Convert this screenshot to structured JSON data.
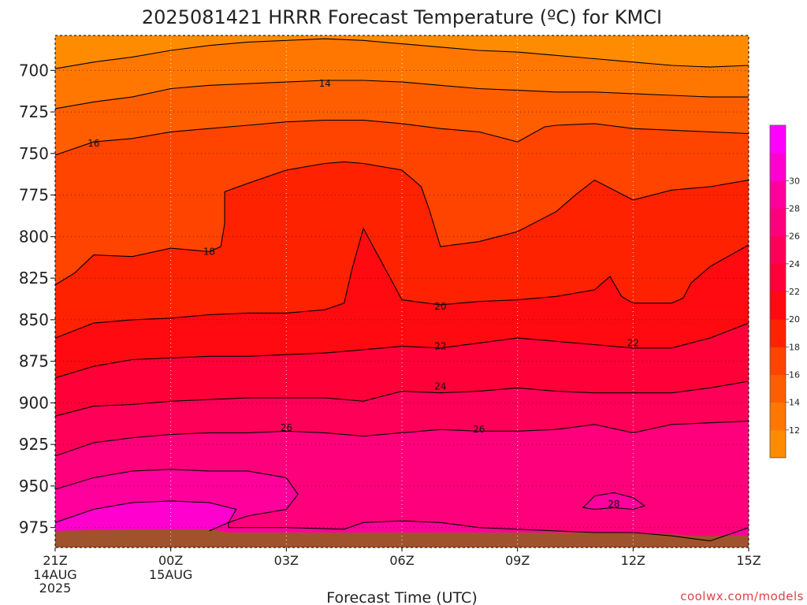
{
  "chart_data": {
    "type": "heatmap",
    "title": "2025081421 HRRR Forecast Temperature (ºC) for KMCI",
    "xlabel": "Forecast Time (UTC)",
    "ylabel": "",
    "credit": "coolwx.com/models",
    "x_ticks": [
      {
        "label": "21Z",
        "sub": [
          "14AUG",
          "2025"
        ]
      },
      {
        "label": "00Z",
        "sub": [
          "15AUG"
        ]
      },
      {
        "label": "03Z",
        "sub": []
      },
      {
        "label": "06Z",
        "sub": []
      },
      {
        "label": "09Z",
        "sub": []
      },
      {
        "label": "12Z",
        "sub": []
      },
      {
        "label": "15Z",
        "sub": []
      }
    ],
    "y_ticks": [
      "700",
      "725",
      "750",
      "775",
      "800",
      "825",
      "850",
      "875",
      "900",
      "925",
      "950",
      "975"
    ],
    "x_range_hours": [
      0,
      18
    ],
    "y_range_hpa": [
      679,
      987
    ],
    "y_axis_inverted": true,
    "grid": true,
    "colorbar": {
      "placement": "right",
      "labels": [
        "12",
        "14",
        "16",
        "18",
        "20",
        "22",
        "24",
        "26",
        "28",
        "30"
      ],
      "levels": [
        10,
        12,
        14,
        16,
        18,
        20,
        22,
        24,
        26,
        28,
        30,
        32
      ],
      "colors": [
        "#ff8c00",
        "#ff7700",
        "#ff5e00",
        "#ff4400",
        "#ff2200",
        "#ff0a10",
        "#ff0038",
        "#ff0058",
        "#ff007d",
        "#ff009c",
        "#ff00ce",
        "#ff00ff"
      ]
    },
    "ground_color": "#a0522d",
    "contour_labels": [
      {
        "text": "14",
        "x": 7.0,
        "y": 708
      },
      {
        "text": "16",
        "x": 1.0,
        "y": 744
      },
      {
        "text": "18",
        "x": 4.0,
        "y": 809
      },
      {
        "text": "20",
        "x": 10.0,
        "y": 842
      },
      {
        "text": "22",
        "x": 10.0,
        "y": 866
      },
      {
        "text": "22",
        "x": 15.0,
        "y": 864
      },
      {
        "text": "24",
        "x": 10.0,
        "y": 890
      },
      {
        "text": "26",
        "x": 6.0,
        "y": 915
      },
      {
        "text": "26",
        "x": 11.0,
        "y": 916
      },
      {
        "text": "28",
        "x": 14.5,
        "y": 961
      }
    ],
    "contours": [
      {
        "level": 13,
        "points": [
          [
            0,
            699
          ],
          [
            1,
            695
          ],
          [
            2,
            692
          ],
          [
            3,
            688
          ],
          [
            4,
            685
          ],
          [
            5,
            683
          ],
          [
            6,
            682
          ],
          [
            7,
            681
          ],
          [
            8,
            682
          ],
          [
            9,
            684
          ],
          [
            10,
            686
          ],
          [
            11,
            688
          ],
          [
            12,
            689
          ],
          [
            13,
            691
          ],
          [
            14,
            693
          ],
          [
            15,
            695
          ],
          [
            16,
            697
          ],
          [
            17,
            698
          ],
          [
            18,
            697
          ]
        ]
      },
      {
        "level": 14,
        "points": [
          [
            0,
            723
          ],
          [
            1,
            719
          ],
          [
            2,
            716
          ],
          [
            3,
            711
          ],
          [
            4,
            709
          ],
          [
            5,
            708
          ],
          [
            6,
            707
          ],
          [
            7,
            706
          ],
          [
            8,
            706
          ],
          [
            9,
            707
          ],
          [
            10,
            709
          ],
          [
            11,
            711
          ],
          [
            12,
            712
          ],
          [
            13,
            713
          ],
          [
            14,
            713
          ],
          [
            15,
            714
          ],
          [
            16,
            715
          ],
          [
            17,
            716
          ],
          [
            18,
            716
          ]
        ]
      },
      {
        "level": 16,
        "points": [
          [
            0,
            751
          ],
          [
            1,
            743
          ],
          [
            2,
            741
          ],
          [
            3,
            737
          ],
          [
            4,
            735
          ],
          [
            5,
            733
          ],
          [
            6,
            731
          ],
          [
            7,
            730
          ],
          [
            8,
            730
          ],
          [
            9,
            732
          ],
          [
            10,
            735
          ],
          [
            11,
            737
          ],
          [
            12,
            743
          ],
          [
            12.7,
            734
          ],
          [
            13,
            733
          ],
          [
            14,
            732
          ],
          [
            15,
            735
          ],
          [
            16,
            736
          ],
          [
            17,
            737
          ],
          [
            18,
            738
          ]
        ]
      },
      {
        "level": 18,
        "points": [
          [
            0,
            829
          ],
          [
            0.5,
            822
          ],
          [
            1,
            811
          ],
          [
            2,
            812
          ],
          [
            3,
            807
          ],
          [
            4,
            809
          ],
          [
            4.3,
            806
          ],
          [
            4.4,
            792
          ],
          [
            4.4,
            773
          ],
          [
            5,
            768
          ],
          [
            6,
            760
          ],
          [
            7,
            756
          ],
          [
            7.5,
            755
          ],
          [
            8,
            756
          ],
          [
            9,
            760
          ],
          [
            9.5,
            770
          ],
          [
            9.7,
            783
          ],
          [
            10,
            806
          ],
          [
            11,
            803
          ],
          [
            12,
            797
          ],
          [
            13,
            785
          ],
          [
            13.5,
            775
          ],
          [
            14,
            766
          ],
          [
            15,
            778
          ],
          [
            16,
            772
          ],
          [
            17,
            770
          ],
          [
            18,
            766
          ]
        ]
      },
      {
        "level": 20,
        "points": [
          [
            0,
            861
          ],
          [
            1,
            852
          ],
          [
            2,
            850
          ],
          [
            3,
            849
          ],
          [
            4,
            847
          ],
          [
            5,
            846
          ],
          [
            6,
            846
          ],
          [
            7,
            844
          ],
          [
            7.5,
            840
          ],
          [
            7.7,
            820
          ],
          [
            8,
            795
          ],
          [
            8.3,
            808
          ],
          [
            8.7,
            825
          ],
          [
            9,
            838
          ],
          [
            10,
            841
          ],
          [
            11,
            839
          ],
          [
            12,
            838
          ],
          [
            13,
            836
          ],
          [
            14,
            832
          ],
          [
            14.4,
            824
          ],
          [
            14.7,
            836
          ],
          [
            15,
            840
          ],
          [
            16,
            840
          ],
          [
            16.3,
            837
          ],
          [
            16.5,
            828
          ],
          [
            17,
            818
          ],
          [
            18,
            805
          ]
        ]
      },
      {
        "level": 22,
        "points": [
          [
            0,
            885
          ],
          [
            1,
            878
          ],
          [
            2,
            874
          ],
          [
            3,
            873
          ],
          [
            4,
            872
          ],
          [
            5,
            872
          ],
          [
            6,
            871
          ],
          [
            7,
            870
          ],
          [
            8,
            868
          ],
          [
            9,
            866
          ],
          [
            10,
            867
          ],
          [
            11,
            864
          ],
          [
            12,
            861
          ],
          [
            13,
            863
          ],
          [
            14,
            865
          ],
          [
            15,
            867
          ],
          [
            16,
            867
          ],
          [
            17,
            861
          ],
          [
            18,
            852
          ]
        ]
      },
      {
        "level": 24,
        "points": [
          [
            0,
            908
          ],
          [
            1,
            902
          ],
          [
            2,
            901
          ],
          [
            3,
            899
          ],
          [
            4,
            898
          ],
          [
            5,
            897
          ],
          [
            6,
            897
          ],
          [
            7,
            897
          ],
          [
            8,
            899
          ],
          [
            9,
            893
          ],
          [
            10,
            894
          ],
          [
            11,
            893
          ],
          [
            12,
            891
          ],
          [
            13,
            893
          ],
          [
            14,
            894
          ],
          [
            15,
            894
          ],
          [
            16,
            894
          ],
          [
            17,
            891
          ],
          [
            18,
            887
          ]
        ]
      },
      {
        "level": 26,
        "points": [
          [
            0,
            932
          ],
          [
            1,
            924
          ],
          [
            2,
            921
          ],
          [
            3,
            919
          ],
          [
            4,
            918
          ],
          [
            5,
            918
          ],
          [
            6,
            917
          ],
          [
            7,
            918
          ],
          [
            8,
            920
          ],
          [
            9,
            918
          ],
          [
            10,
            916
          ],
          [
            11,
            917
          ],
          [
            12,
            917
          ],
          [
            13,
            916
          ],
          [
            14,
            913
          ],
          [
            15,
            918
          ],
          [
            16,
            913
          ],
          [
            17,
            912
          ],
          [
            18,
            911
          ]
        ]
      },
      {
        "level": 28,
        "points": [
          [
            0,
            952
          ],
          [
            1,
            945
          ],
          [
            2,
            941
          ],
          [
            3,
            940
          ],
          [
            4,
            941
          ],
          [
            5,
            941
          ],
          [
            6,
            945
          ],
          [
            6.3,
            955
          ],
          [
            6,
            964
          ],
          [
            5,
            968
          ],
          [
            4.5,
            972
          ],
          [
            4.5,
            975
          ],
          [
            5,
            975
          ],
          [
            6,
            975
          ],
          [
            7.5,
            976
          ],
          [
            8,
            972
          ],
          [
            9,
            971
          ],
          [
            10,
            972
          ],
          [
            11,
            975
          ],
          [
            12,
            976
          ],
          [
            13,
            977
          ],
          [
            14,
            978
          ],
          [
            15,
            978
          ],
          [
            16,
            980
          ],
          [
            17,
            983
          ],
          [
            18,
            975
          ]
        ]
      },
      {
        "level": 28,
        "closed": true,
        "points": [
          [
            13.7,
            963
          ],
          [
            14,
            956
          ],
          [
            14.5,
            954
          ],
          [
            15,
            957
          ],
          [
            15.3,
            962
          ],
          [
            15,
            964
          ],
          [
            14.5,
            963
          ],
          [
            14,
            964
          ],
          [
            13.7,
            963
          ]
        ]
      },
      {
        "level": 30,
        "points": [
          [
            0,
            972
          ],
          [
            1,
            964
          ],
          [
            2,
            960
          ],
          [
            3,
            959
          ],
          [
            4,
            960
          ],
          [
            4.7,
            964
          ],
          [
            4.5,
            972
          ],
          [
            4,
            977
          ]
        ]
      }
    ]
  }
}
